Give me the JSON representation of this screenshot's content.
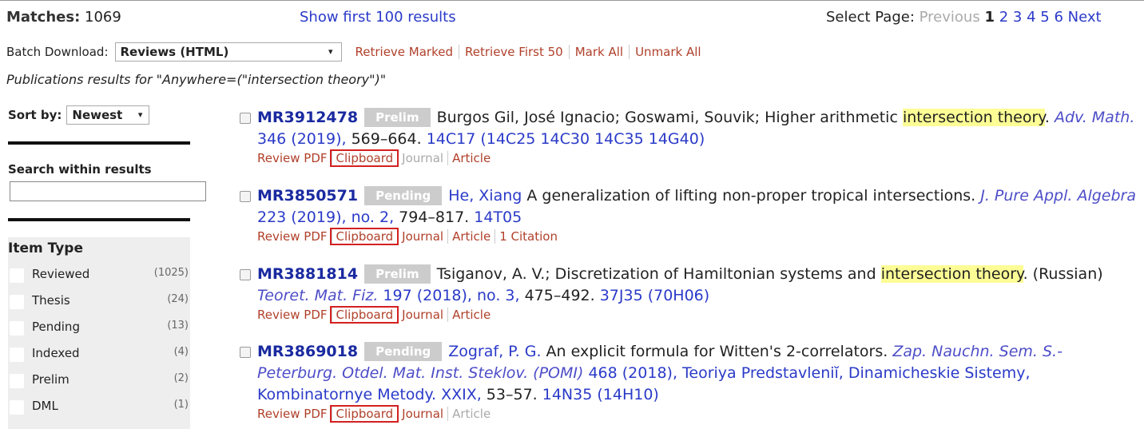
{
  "header": {
    "matches_label": "Matches:",
    "matches_count": "1069",
    "show_first": "Show first 100 results",
    "select_page_label": "Select Page:",
    "previous": "Previous",
    "pages": [
      "1",
      "2",
      "3",
      "4",
      "5",
      "6"
    ],
    "next": "Next"
  },
  "batch": {
    "label": "Batch Download:",
    "format": "Reviews (HTML)",
    "links": [
      "Retrieve Marked",
      "Retrieve First 50",
      "Mark All",
      "Unmark All"
    ]
  },
  "query": "Publications results for \"Anywhere=(\"intersection theory\")\"",
  "sidebar": {
    "sort_label": "Sort by:",
    "sort_value": "Newest",
    "search_label": "Search within results",
    "item_type_title": "Item Type",
    "item_types": [
      {
        "label": "Reviewed",
        "count": "(1025)"
      },
      {
        "label": "Thesis",
        "count": "(24)"
      },
      {
        "label": "Pending",
        "count": "(13)"
      },
      {
        "label": "Indexed",
        "count": "(4)"
      },
      {
        "label": "Prelim",
        "count": "(2)"
      },
      {
        "label": "DML",
        "count": "(1)"
      }
    ]
  },
  "results": [
    {
      "mr": "MR3912478",
      "status": "Prelim",
      "parts": [
        {
          "text": "Burgos Gil, José Ignacio; Goswami, Souvik; Higher arithmetic ",
          "kind": "plain"
        },
        {
          "text": "intersection theory",
          "kind": "highlight"
        },
        {
          "text": ". ",
          "kind": "plain"
        },
        {
          "text": "Adv. Math.",
          "kind": "journal"
        },
        {
          "text": " 346 (2019),",
          "kind": "link"
        },
        {
          "text": " 569–664. ",
          "kind": "plain"
        },
        {
          "text": "14C17 (14C25 14C30 14C35 14G40)",
          "kind": "link"
        }
      ],
      "actions": [
        {
          "text": "Review PDF",
          "enabled": true
        },
        {
          "text": "Clipboard",
          "enabled": true
        },
        {
          "text": "Journal",
          "enabled": false
        },
        {
          "text": "Article",
          "enabled": true
        }
      ]
    },
    {
      "mr": "MR3850571",
      "status": "Pending",
      "parts": [
        {
          "text": "He, Xiang",
          "kind": "link"
        },
        {
          "text": " A generalization of lifting non-proper tropical intersections. ",
          "kind": "plain"
        },
        {
          "text": "J. Pure Appl. Algebra",
          "kind": "journal"
        },
        {
          "text": " 223 (2019), no. 2,",
          "kind": "link"
        },
        {
          "text": " 794–817. ",
          "kind": "plain"
        },
        {
          "text": "14T05",
          "kind": "link"
        }
      ],
      "actions": [
        {
          "text": "Review PDF",
          "enabled": true
        },
        {
          "text": "Clipboard",
          "enabled": true
        },
        {
          "text": "Journal",
          "enabled": true
        },
        {
          "text": "Article",
          "enabled": true
        },
        {
          "text": "1 Citation",
          "enabled": true
        }
      ]
    },
    {
      "mr": "MR3881814",
      "status": "Prelim",
      "parts": [
        {
          "text": "Tsiganov, A. V.; Discretization of Hamiltonian systems and ",
          "kind": "plain"
        },
        {
          "text": "intersection theory",
          "kind": "highlight"
        },
        {
          "text": ". (Russian) ",
          "kind": "plain"
        },
        {
          "text": "Teoret. Mat. Fiz.",
          "kind": "journal"
        },
        {
          "text": " 197 (2018), no. 3,",
          "kind": "link"
        },
        {
          "text": " 475–492. ",
          "kind": "plain"
        },
        {
          "text": "37J35 (70H06)",
          "kind": "link"
        }
      ],
      "actions": [
        {
          "text": "Review PDF",
          "enabled": true
        },
        {
          "text": "Clipboard",
          "enabled": true
        },
        {
          "text": "Journal",
          "enabled": true
        },
        {
          "text": "Article",
          "enabled": true
        }
      ]
    },
    {
      "mr": "MR3869018",
      "status": "Pending",
      "parts": [
        {
          "text": "Zograf, P. G.",
          "kind": "link"
        },
        {
          "text": " An explicit formula for Witten's 2-correlators. ",
          "kind": "plain"
        },
        {
          "text": "Zap. Nauchn. Sem. S.-Peterburg. Otdel. Mat. Inst. Steklov. (POMI)",
          "kind": "journal"
        },
        {
          "text": " 468 (2018), Teoriya Predstavleniĭ, Dinamicheskie Sistemy, Kombinatornye Metody. XXIX,",
          "kind": "link"
        },
        {
          "text": " 53–57. ",
          "kind": "plain"
        },
        {
          "text": "14N35 (14H10)",
          "kind": "link"
        }
      ],
      "actions": [
        {
          "text": "Review PDF",
          "enabled": true
        },
        {
          "text": "Clipboard",
          "enabled": true
        },
        {
          "text": "Journal",
          "enabled": true
        },
        {
          "text": "Article",
          "enabled": false
        }
      ]
    }
  ]
}
